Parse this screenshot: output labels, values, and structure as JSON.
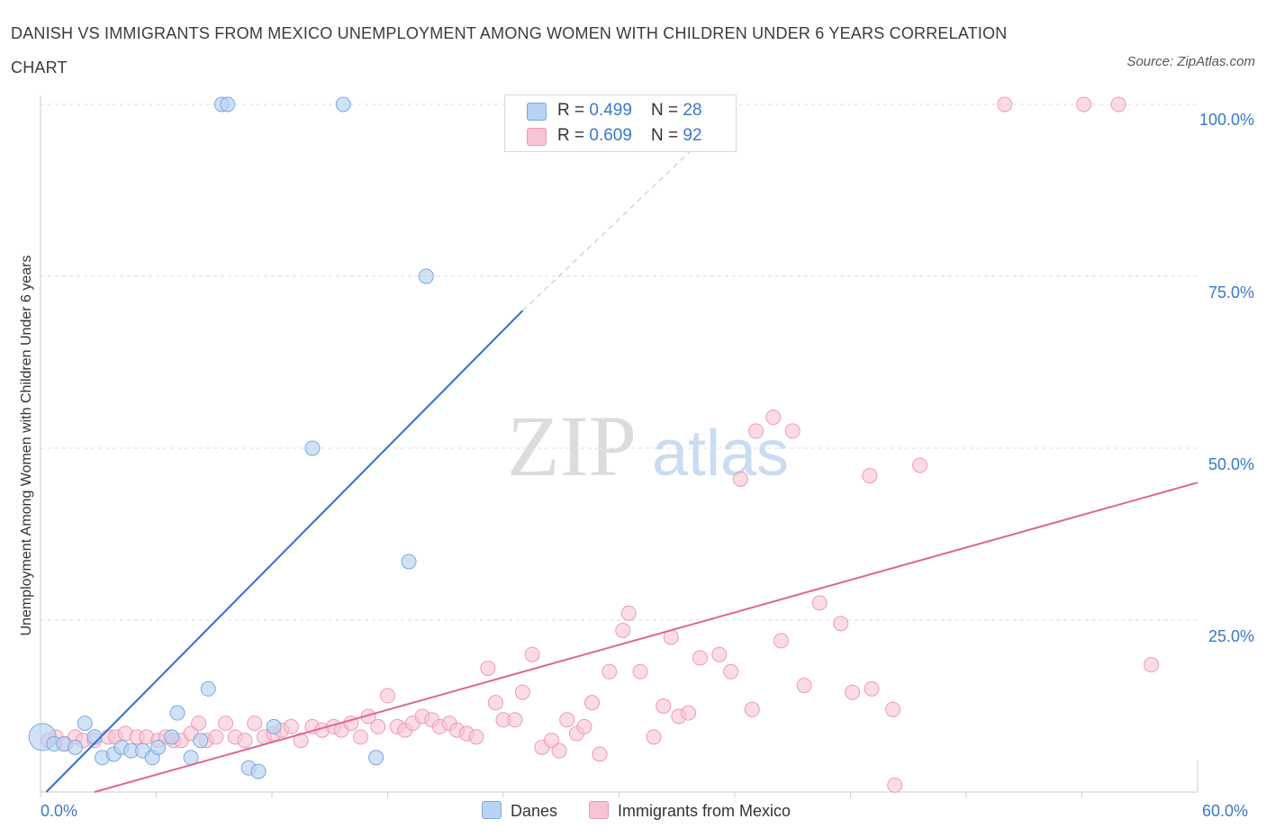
{
  "title": "DANISH VS IMMIGRANTS FROM MEXICO UNEMPLOYMENT AMONG WOMEN WITH CHILDREN UNDER 6 YEARS CORRELATION CHART",
  "source": "Source: ZipAtlas.com",
  "watermark": {
    "zip": "ZIP",
    "atlas": "atlas"
  },
  "legend": {
    "danes": {
      "r_label": "R = ",
      "r_value": "0.499",
      "n_label": "N = ",
      "n_value": "28"
    },
    "mexico": {
      "r_label": "R = ",
      "r_value": "0.609",
      "n_label": "N = ",
      "n_value": "92"
    }
  },
  "colors": {
    "danes_fill": "#b8d2f2",
    "danes_stroke": "#7aa8e0",
    "danes_line": "#2f6fd0",
    "mexico_fill": "#f8c4d3",
    "mexico_stroke": "#ee9ab3",
    "mexico_line": "#e0668f",
    "tick_text": "#3a78c9"
  },
  "chart_data": {
    "type": "scatter",
    "title": "DANISH VS IMMIGRANTS FROM MEXICO UNEMPLOYMENT AMONG WOMEN WITH CHILDREN UNDER 6 YEARS CORRELATION CHART",
    "xlabel": "",
    "ylabel": "Unemployment Among Women with Children Under 6 years",
    "xlim": [
      0,
      60
    ],
    "ylim": [
      0,
      100
    ],
    "x_tick_labels": [
      "0.0%",
      "60.0%"
    ],
    "y_tick_labels": [
      "100.0%",
      "75.0%",
      "50.0%",
      "25.0%"
    ],
    "y_ticks": [
      100,
      75,
      50,
      25
    ],
    "grid": true,
    "legend_position": "bottom-center",
    "series": [
      {
        "name": "Danes",
        "points": [
          [
            0.1,
            8
          ],
          [
            0.7,
            7
          ],
          [
            1.2,
            7
          ],
          [
            1.8,
            6.5
          ],
          [
            2.3,
            10
          ],
          [
            2.8,
            8
          ],
          [
            3.2,
            5
          ],
          [
            3.8,
            5.5
          ],
          [
            4.2,
            6.5
          ],
          [
            4.7,
            6
          ],
          [
            5.3,
            6
          ],
          [
            5.8,
            5
          ],
          [
            6.1,
            6.5
          ],
          [
            6.8,
            8
          ],
          [
            7.1,
            11.5
          ],
          [
            7.8,
            5
          ],
          [
            8.3,
            7.5
          ],
          [
            8.7,
            15
          ],
          [
            9.4,
            100
          ],
          [
            9.7,
            100
          ],
          [
            10.8,
            3.5
          ],
          [
            11.3,
            3
          ],
          [
            12.1,
            9.5
          ],
          [
            14.1,
            50
          ],
          [
            15.7,
            100
          ],
          [
            17.4,
            5
          ],
          [
            19.1,
            33.5
          ],
          [
            20,
            75
          ]
        ],
        "fit": {
          "x0": 0.3,
          "y0": 0,
          "x1": 25,
          "y1": 70,
          "dash_to_x": 34,
          "dash_to_y": 94
        }
      },
      {
        "name": "Immigrants from Mexico",
        "points": [
          [
            0.4,
            7.5
          ],
          [
            0.8,
            8
          ],
          [
            1.3,
            7
          ],
          [
            1.8,
            8
          ],
          [
            2.2,
            7.5
          ],
          [
            2.8,
            7.5
          ],
          [
            3.5,
            8
          ],
          [
            3.9,
            8
          ],
          [
            4.4,
            8.5
          ],
          [
            5,
            8
          ],
          [
            5.5,
            8
          ],
          [
            6.1,
            7.5
          ],
          [
            6.5,
            8
          ],
          [
            6.9,
            7.5
          ],
          [
            7.3,
            7.5
          ],
          [
            7.8,
            8.5
          ],
          [
            8.2,
            10
          ],
          [
            8.6,
            7.5
          ],
          [
            9.1,
            8
          ],
          [
            9.6,
            10
          ],
          [
            10.1,
            8
          ],
          [
            10.6,
            7.5
          ],
          [
            11.1,
            10
          ],
          [
            11.6,
            8
          ],
          [
            12.1,
            8.5
          ],
          [
            12.5,
            9
          ],
          [
            13,
            9.5
          ],
          [
            13.5,
            7.5
          ],
          [
            14.1,
            9.5
          ],
          [
            14.6,
            9
          ],
          [
            15.2,
            9.5
          ],
          [
            15.6,
            9
          ],
          [
            16.1,
            10
          ],
          [
            16.6,
            8
          ],
          [
            17,
            11
          ],
          [
            17.5,
            9.5
          ],
          [
            18,
            14
          ],
          [
            18.5,
            9.5
          ],
          [
            18.9,
            9
          ],
          [
            19.3,
            10
          ],
          [
            19.8,
            11
          ],
          [
            20.3,
            10.5
          ],
          [
            20.7,
            9.5
          ],
          [
            21.2,
            10
          ],
          [
            21.6,
            9
          ],
          [
            22.1,
            8.5
          ],
          [
            22.6,
            8
          ],
          [
            23.2,
            18
          ],
          [
            23.6,
            13
          ],
          [
            24,
            10.5
          ],
          [
            24.6,
            10.5
          ],
          [
            25,
            14.5
          ],
          [
            25.5,
            20
          ],
          [
            26,
            6.5
          ],
          [
            26.5,
            7.5
          ],
          [
            26.9,
            6
          ],
          [
            27.3,
            10.5
          ],
          [
            27.8,
            8.5
          ],
          [
            28.2,
            9.5
          ],
          [
            28.6,
            13
          ],
          [
            29,
            5.5
          ],
          [
            29.5,
            17.5
          ],
          [
            30.2,
            23.5
          ],
          [
            30.5,
            26
          ],
          [
            31.1,
            17.5
          ],
          [
            31.8,
            8
          ],
          [
            32.3,
            12.5
          ],
          [
            32.7,
            22.5
          ],
          [
            33.1,
            11
          ],
          [
            33.6,
            11.5
          ],
          [
            34.2,
            19.5
          ],
          [
            35.2,
            20
          ],
          [
            35.8,
            17.5
          ],
          [
            36.3,
            45.5
          ],
          [
            36.9,
            12
          ],
          [
            37.1,
            52.5
          ],
          [
            38,
            54.5
          ],
          [
            38.4,
            22
          ],
          [
            39,
            52.5
          ],
          [
            39.6,
            15.5
          ],
          [
            40.4,
            27.5
          ],
          [
            41.5,
            24.5
          ],
          [
            42.1,
            14.5
          ],
          [
            43,
            46
          ],
          [
            43.1,
            15
          ],
          [
            44.2,
            12
          ],
          [
            44.3,
            1
          ],
          [
            45.6,
            47.5
          ],
          [
            50,
            100
          ],
          [
            54.1,
            100
          ],
          [
            55.9,
            100
          ],
          [
            57.6,
            18.5
          ]
        ],
        "fit": {
          "x0": 2.8,
          "y0": 0,
          "x1": 60,
          "y1": 45
        }
      }
    ]
  },
  "bottom_legend": {
    "danes": "Danes",
    "mexico": "Immigrants from Mexico"
  }
}
